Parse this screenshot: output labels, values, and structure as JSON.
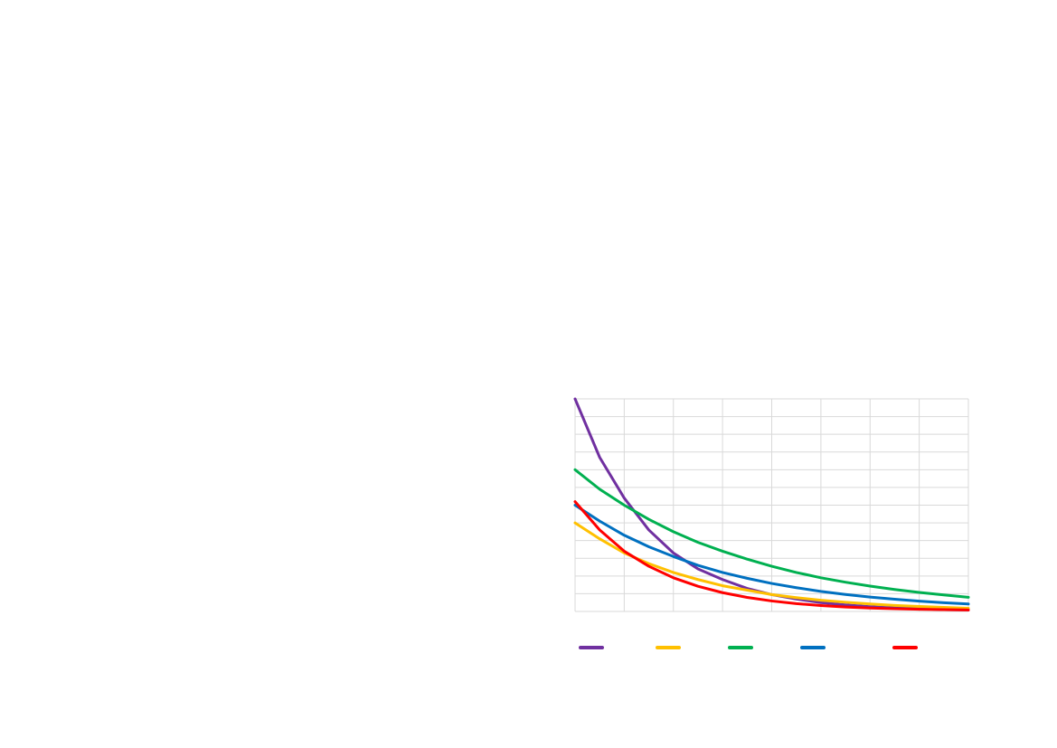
{
  "chart_data": {
    "type": "line",
    "title": "",
    "xlabel": "",
    "ylabel": "",
    "grid": true,
    "legend_placement": "bottom",
    "xlim": [
      0,
      8
    ],
    "ylim": [
      0,
      12
    ],
    "series": [
      {
        "color": "#7030A0",
        "x": [
          0,
          0.5,
          1,
          1.5,
          2,
          2.5,
          3,
          3.5,
          4,
          4.5,
          5,
          5.5,
          6,
          6.5,
          7,
          7.5,
          8
        ],
        "y": [
          12.0,
          8.7,
          6.4,
          4.6,
          3.3,
          2.4,
          1.8,
          1.3,
          0.95,
          0.7,
          0.5,
          0.37,
          0.27,
          0.2,
          0.15,
          0.1,
          0.08
        ]
      },
      {
        "color": "#FFC000",
        "x": [
          0,
          0.5,
          1,
          1.5,
          2,
          2.5,
          3,
          3.5,
          4,
          4.5,
          5,
          5.5,
          6,
          6.5,
          7,
          7.5,
          8
        ],
        "y": [
          5.0,
          4.1,
          3.3,
          2.7,
          2.2,
          1.8,
          1.45,
          1.2,
          0.95,
          0.78,
          0.63,
          0.52,
          0.42,
          0.34,
          0.28,
          0.23,
          0.18
        ]
      },
      {
        "color": "#00B050",
        "x": [
          0,
          0.5,
          1,
          1.5,
          2,
          2.5,
          3,
          3.5,
          4,
          4.5,
          5,
          5.5,
          6,
          6.5,
          7,
          7.5,
          8
        ],
        "y": [
          8.0,
          6.9,
          6.0,
          5.2,
          4.5,
          3.9,
          3.4,
          2.95,
          2.55,
          2.2,
          1.9,
          1.65,
          1.43,
          1.24,
          1.07,
          0.93,
          0.8
        ]
      },
      {
        "color": "#0070C0",
        "x": [
          0,
          0.5,
          1,
          1.5,
          2,
          2.5,
          3,
          3.5,
          4,
          4.5,
          5,
          5.5,
          6,
          6.5,
          7,
          7.5,
          8
        ],
        "y": [
          6.0,
          5.1,
          4.3,
          3.65,
          3.1,
          2.6,
          2.2,
          1.87,
          1.58,
          1.34,
          1.13,
          0.96,
          0.81,
          0.69,
          0.58,
          0.49,
          0.42
        ]
      },
      {
        "color": "#FF0000",
        "x": [
          0,
          0.5,
          1,
          1.5,
          2,
          2.5,
          3,
          3.5,
          4,
          4.5,
          5,
          5.5,
          6,
          6.5,
          7,
          7.5,
          8
        ],
        "y": [
          6.2,
          4.6,
          3.4,
          2.55,
          1.9,
          1.42,
          1.06,
          0.79,
          0.59,
          0.44,
          0.33,
          0.25,
          0.19,
          0.15,
          0.12,
          0.1,
          0.08
        ]
      }
    ]
  }
}
